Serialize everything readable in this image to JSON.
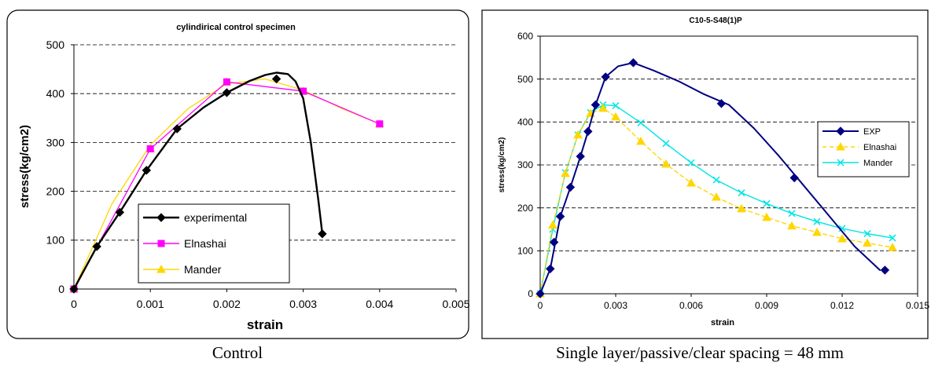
{
  "captions": {
    "left": "Control",
    "right": "Single layer/passive/clear spacing = 48 mm"
  },
  "chart_data": [
    {
      "type": "line",
      "title": "cylindirical control specimen",
      "xlabel": "strain",
      "ylabel": "stress(kg/cm2)",
      "xlim": [
        0,
        0.005
      ],
      "ylim": [
        0,
        500
      ],
      "xticks": [
        "0",
        "0.001",
        "0.002",
        "0.003",
        "0.004",
        "0.005"
      ],
      "yticks": [
        "0",
        "100",
        "200",
        "300",
        "400",
        "500"
      ],
      "grid": "horizontal dashed",
      "legend": "bottom-right",
      "series": [
        {
          "name": "experimental",
          "color": "#000000",
          "marker": "diamond",
          "x": [
            0,
            0.0003,
            0.0006,
            0.00095,
            0.00135,
            0.0017,
            0.002,
            0.0023,
            0.0025,
            0.00265,
            0.0028,
            0.0029,
            0.003,
            0.0031,
            0.0032,
            0.00325
          ],
          "y": [
            0,
            87,
            157,
            243,
            328,
            372,
            402,
            426,
            438,
            443,
            440,
            425,
            390,
            300,
            180,
            113
          ],
          "markers_x": [
            0,
            0.0003,
            0.0006,
            0.00095,
            0.00135,
            0.002,
            0.00265,
            0.00325
          ],
          "markers_y": [
            0,
            87,
            157,
            243,
            328,
            402,
            430,
            113
          ]
        },
        {
          "name": "Elnashai",
          "color": "#ff00ff",
          "marker": "square",
          "x": [
            0,
            0.001,
            0.002,
            0.003,
            0.004
          ],
          "y": [
            0,
            287,
            424,
            405,
            338
          ]
        },
        {
          "name": "Mander",
          "color": "#ffd700",
          "marker": "triangle",
          "x": [
            0,
            0.0005,
            0.001,
            0.0015,
            0.002,
            0.0025,
            0.003,
            0.0035,
            0.004
          ],
          "y": [
            0,
            175,
            295,
            370,
            420,
            430,
            407,
            370,
            338
          ],
          "markers_x": [
            0,
            0.001,
            0.002,
            0.003,
            0.004
          ],
          "markers_y": [
            0,
            287,
            424,
            405,
            338
          ]
        }
      ]
    },
    {
      "type": "line",
      "title": "C10-5-S48(1)P",
      "xlabel": "strain",
      "ylabel": "stress(kg/cm2)",
      "xlim": [
        0,
        0.015
      ],
      "ylim": [
        0,
        600
      ],
      "xticks": [
        "0",
        "0.003",
        "0.006",
        "0.009",
        "0.012",
        "0.015"
      ],
      "yticks": [
        "0",
        "100",
        "200",
        "300",
        "400",
        "500",
        "600"
      ],
      "grid": "horizontal dashed",
      "legend": "right",
      "series": [
        {
          "name": "EXP",
          "color": "#000080",
          "marker": "diamond",
          "x": [
            0,
            0.0004,
            0.0008,
            0.0012,
            0.0016,
            0.0019,
            0.0022,
            0.0026,
            0.0031,
            0.0037,
            0.0045,
            0.0055,
            0.0065,
            0.0075,
            0.0085,
            0.0095,
            0.0105,
            0.0115,
            0.0125,
            0.0135
          ],
          "y": [
            0,
            58,
            180,
            248,
            320,
            378,
            440,
            505,
            530,
            538,
            520,
            495,
            465,
            440,
            385,
            320,
            250,
            180,
            110,
            55
          ],
          "markers_x": [
            0,
            0.0004,
            0.00055,
            0.0008,
            0.0012,
            0.0016,
            0.0019,
            0.0022,
            0.0026,
            0.0037,
            0.0072,
            0.0101,
            0.0137
          ],
          "markers_y": [
            0,
            58,
            120,
            180,
            248,
            320,
            378,
            440,
            505,
            538,
            443,
            270,
            55
          ]
        },
        {
          "name": "Elnashai",
          "color": "#ffd700",
          "marker": "triangle",
          "dashed": true,
          "x": [
            0,
            0.0005,
            0.001,
            0.0015,
            0.002,
            0.0025,
            0.003,
            0.004,
            0.005,
            0.006,
            0.007,
            0.008,
            0.009,
            0.01,
            0.011,
            0.012,
            0.013,
            0.014
          ],
          "y": [
            0,
            160,
            280,
            370,
            420,
            432,
            412,
            355,
            302,
            258,
            225,
            198,
            178,
            158,
            143,
            128,
            118,
            108
          ]
        },
        {
          "name": "Mander",
          "color": "#00e5e5",
          "marker": "x",
          "x": [
            0,
            0.0005,
            0.001,
            0.0015,
            0.002,
            0.0025,
            0.003,
            0.004,
            0.005,
            0.006,
            0.007,
            0.008,
            0.009,
            0.01,
            0.011,
            0.012,
            0.013,
            0.014
          ],
          "y": [
            0,
            150,
            282,
            370,
            422,
            440,
            438,
            398,
            350,
            305,
            265,
            235,
            210,
            187,
            168,
            152,
            140,
            130
          ]
        }
      ]
    }
  ]
}
